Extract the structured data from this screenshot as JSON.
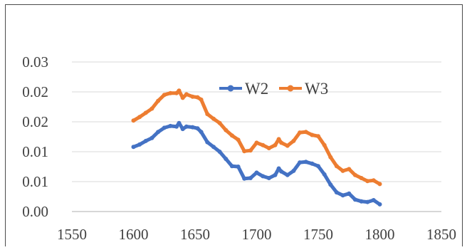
{
  "chart_data": {
    "type": "line",
    "title": "",
    "xlabel": "",
    "ylabel": "",
    "xlim": [
      1550,
      1850
    ],
    "ylim": [
      0.0,
      0.025
    ],
    "x_ticks": [
      "1550",
      "1600",
      "1650",
      "1700",
      "1750",
      "1800",
      "1850"
    ],
    "x_tick_values": [
      1550,
      1600,
      1650,
      1700,
      1750,
      1800,
      1850
    ],
    "y_ticks": [
      "0.00",
      "0.01",
      "0.01",
      "0.02",
      "0.02",
      "0.03"
    ],
    "y_tick_values": [
      0.0,
      0.005,
      0.01,
      0.015,
      0.02,
      0.025
    ],
    "grid": "horizontal",
    "legend_position": "top-center",
    "series": [
      {
        "name": "W2",
        "color": "#4472C4",
        "marker": "circle",
        "x": [
          1600,
          1605,
          1610,
          1615,
          1620,
          1625,
          1630,
          1635,
          1637,
          1640,
          1643,
          1648,
          1652,
          1655,
          1660,
          1665,
          1670,
          1675,
          1680,
          1685,
          1690,
          1695,
          1700,
          1705,
          1710,
          1715,
          1718,
          1720,
          1725,
          1730,
          1735,
          1740,
          1745,
          1750,
          1755,
          1760,
          1765,
          1770,
          1775,
          1780,
          1785,
          1790,
          1795,
          1800
        ],
        "values": [
          0.0108,
          0.0112,
          0.0118,
          0.0123,
          0.0133,
          0.014,
          0.0143,
          0.0142,
          0.0148,
          0.0138,
          0.0142,
          0.0141,
          0.0139,
          0.0133,
          0.0116,
          0.0108,
          0.01,
          0.0088,
          0.0076,
          0.0075,
          0.0055,
          0.0056,
          0.0065,
          0.0059,
          0.0056,
          0.0061,
          0.0072,
          0.0067,
          0.0061,
          0.0068,
          0.0082,
          0.0083,
          0.008,
          0.0076,
          0.0062,
          0.0045,
          0.0032,
          0.0027,
          0.003,
          0.002,
          0.0017,
          0.0016,
          0.0019,
          0.0012
        ]
      },
      {
        "name": "W3",
        "color": "#ED7D31",
        "marker": "circle",
        "x": [
          1600,
          1605,
          1610,
          1615,
          1620,
          1625,
          1630,
          1635,
          1637,
          1640,
          1643,
          1648,
          1652,
          1655,
          1660,
          1665,
          1670,
          1675,
          1680,
          1685,
          1690,
          1695,
          1700,
          1705,
          1710,
          1715,
          1718,
          1720,
          1725,
          1730,
          1735,
          1740,
          1745,
          1750,
          1755,
          1760,
          1765,
          1770,
          1775,
          1780,
          1785,
          1790,
          1795,
          1800
        ],
        "values": [
          0.0152,
          0.0158,
          0.0165,
          0.0172,
          0.0185,
          0.0195,
          0.0198,
          0.0198,
          0.0202,
          0.019,
          0.0196,
          0.0192,
          0.0191,
          0.0187,
          0.0163,
          0.0155,
          0.0148,
          0.0136,
          0.0127,
          0.012,
          0.0101,
          0.0102,
          0.0115,
          0.0111,
          0.0106,
          0.0111,
          0.0121,
          0.0115,
          0.011,
          0.0118,
          0.0132,
          0.0133,
          0.0128,
          0.0126,
          0.0111,
          0.0091,
          0.0076,
          0.0068,
          0.0071,
          0.0061,
          0.0056,
          0.0051,
          0.0052,
          0.0046
        ]
      }
    ]
  }
}
